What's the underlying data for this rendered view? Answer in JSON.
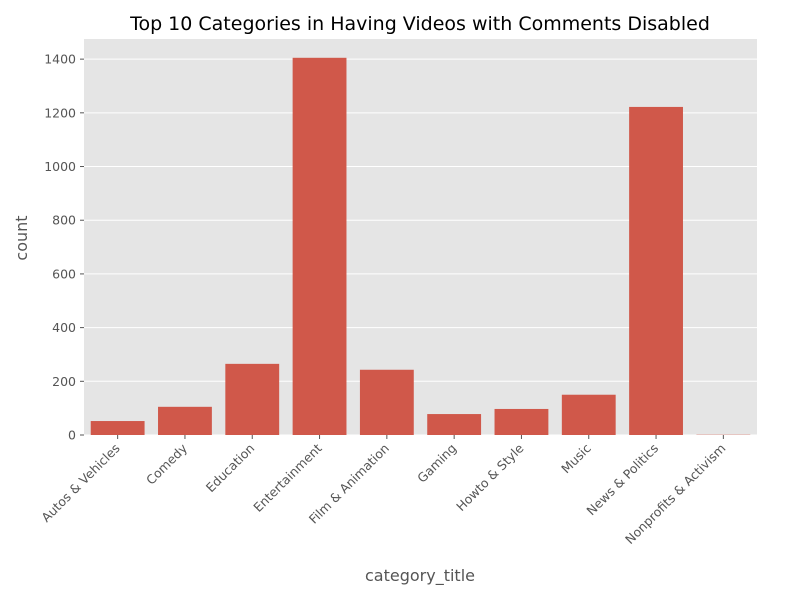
{
  "chart_data": {
    "type": "bar",
    "title": "Top 10 Categories in Having Videos with Comments Disabled",
    "xlabel": "category_title",
    "ylabel": "count",
    "categories": [
      "Autos & Vehicles",
      "Comedy",
      "Education",
      "Entertainment",
      "Film & Animation",
      "Gaming",
      "Howto & Style",
      "Music",
      "News & Politics",
      "Nonprofits & Activism"
    ],
    "values": [
      52,
      105,
      265,
      1405,
      243,
      78,
      97,
      150,
      1222,
      1
    ],
    "yticks": [
      0,
      200,
      400,
      600,
      800,
      1000,
      1200,
      1400
    ],
    "ylim": [
      0,
      1475
    ],
    "grid": true,
    "bar_color": "#d0584a",
    "background_color": "#e5e5e5",
    "grid_color": "#ffffff"
  }
}
